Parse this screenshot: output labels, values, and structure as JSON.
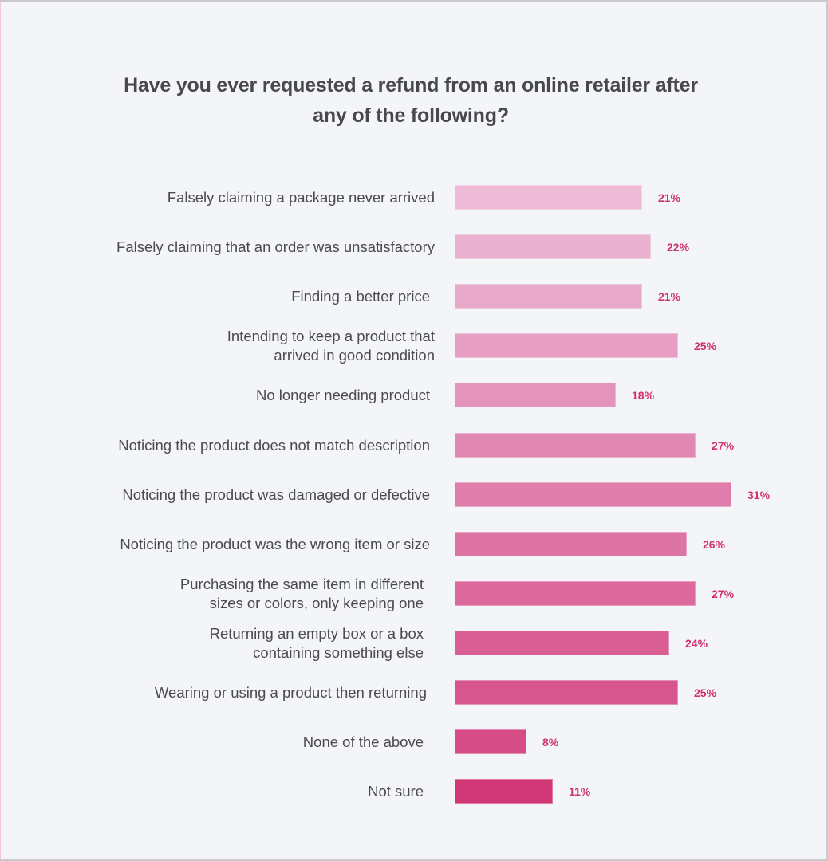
{
  "title": "Have you ever requested a refund from an online retailer after any of the following?",
  "chart_data": {
    "type": "bar",
    "orientation": "horizontal",
    "title": "Have you ever requested a refund from an online retailer after any of the following?",
    "xlabel": "",
    "ylabel": "",
    "grid": false,
    "legend": null,
    "value_format": "percent",
    "categories": [
      "Falsely claiming a package never arrived",
      "Falsely claiming that an order was unsatisfactory",
      "Finding a better price",
      "Intending to keep a product that arrived in good condition",
      "No longer needing product",
      "Noticing the product does not match description",
      "Noticing the product was damaged or defective",
      "Noticing the product was the wrong item or size",
      "Purchasing the same item in different sizes or colors, only keeping one",
      "Returning an empty box or a box containing something else",
      "Wearing or using a product then returning",
      "None of the above",
      "Not sure"
    ],
    "values": [
      21,
      22,
      21,
      25,
      18,
      27,
      31,
      26,
      27,
      24,
      25,
      8,
      11
    ]
  },
  "rows": [
    {
      "line1": "Falsely claiming a package never arrived",
      "line2": "",
      "value": 21,
      "value_label": "21%",
      "color": "#eebbd6"
    },
    {
      "line1": "Falsely claiming that an order was unsatisfactory",
      "line2": "",
      "value": 22,
      "value_label": "22%",
      "color": "#eab2cf"
    },
    {
      "line1": "Finding a better price",
      "line2": "",
      "value": 21,
      "value_label": "21%",
      "color": "#e8a9c8"
    },
    {
      "line1": "Intending to keep a product that",
      "line2": "arrived in good condition",
      "value": 25,
      "value_label": "25%",
      "color": "#e69ec2"
    },
    {
      "line1": "No longer needing product",
      "line2": "",
      "value": 18,
      "value_label": "18%",
      "color": "#e494bb"
    },
    {
      "line1": "Noticing the product does not match description",
      "line2": "",
      "value": 27,
      "value_label": "27%",
      "color": "#e289b3"
    },
    {
      "line1": "Noticing the product was damaged or defective",
      "line2": "",
      "value": 31,
      "value_label": "31%",
      "color": "#e07eab"
    },
    {
      "line1": "Noticing the product was the wrong item or size",
      "line2": "",
      "value": 26,
      "value_label": "26%",
      "color": "#de74a4"
    },
    {
      "line1": "Purchasing the same item in different",
      "line2": "sizes or colors, only keeping one",
      "value": 27,
      "value_label": "27%",
      "color": "#dc699c"
    },
    {
      "line1": "Returning an empty box or a box",
      "line2": "containing something else",
      "value": 24,
      "value_label": "24%",
      "color": "#da5e94"
    },
    {
      "line1": "Wearing or using a product then returning",
      "line2": "",
      "value": 25,
      "value_label": "25%",
      "color": "#d8568e"
    },
    {
      "line1": "None of the above",
      "line2": "",
      "value": 8,
      "value_label": "8%",
      "color": "#d64c86"
    },
    {
      "line1": "Not sure",
      "line2": "",
      "value": 11,
      "value_label": "11%",
      "color": "#d13876"
    }
  ],
  "colors": {
    "background": "#f4f5f9",
    "title_text": "#48494b",
    "label_text": "#4a4b4d",
    "value_text": "#d0306f"
  }
}
